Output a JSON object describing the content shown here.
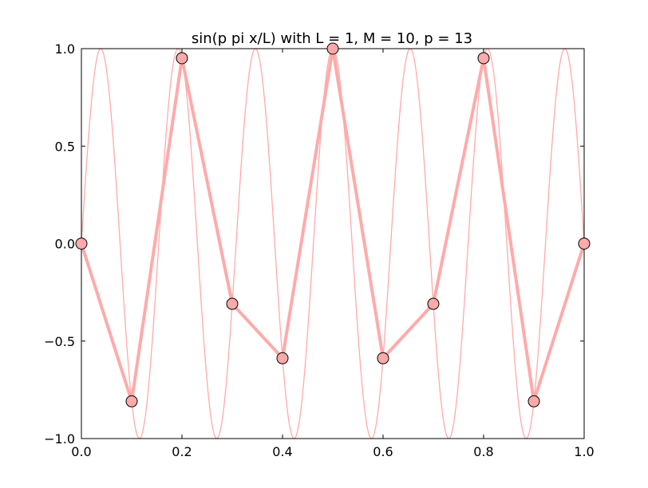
{
  "chart_data": {
    "type": "line",
    "title": "sin(p pi x/L) with L = 1, M = 10, p = 13",
    "xlabel": "",
    "ylabel": "",
    "xlim": [
      0.0,
      1.0
    ],
    "ylim": [
      -1.0,
      1.0
    ],
    "grid": false,
    "legend": "none",
    "color": "#ffaaaa",
    "marker_edge_color": "#000000",
    "x_ticks": [
      {
        "value": 0.0,
        "label": "0.0"
      },
      {
        "value": 0.2,
        "label": "0.2"
      },
      {
        "value": 0.4,
        "label": "0.4"
      },
      {
        "value": 0.6,
        "label": "0.6"
      },
      {
        "value": 0.8,
        "label": "0.8"
      },
      {
        "value": 1.0,
        "label": "1.0"
      }
    ],
    "y_ticks": [
      {
        "value": -1.0,
        "label": "−1.0"
      },
      {
        "value": -0.5,
        "label": "−0.5"
      },
      {
        "value": 0.0,
        "label": "0.0"
      },
      {
        "value": 0.5,
        "label": "0.5"
      },
      {
        "value": 1.0,
        "label": "1.0"
      }
    ],
    "series": [
      {
        "style": "thin-curve",
        "function": "sin(p*pi*x/L)",
        "p": 13,
        "L": 1
      },
      {
        "style": "thick-line-with-markers",
        "x": [
          0.0,
          0.1,
          0.2,
          0.3,
          0.4,
          0.5,
          0.6,
          0.7,
          0.8,
          0.9,
          1.0
        ],
        "y": [
          0.0,
          -0.809,
          0.951,
          -0.309,
          -0.588,
          1.0,
          -0.588,
          -0.309,
          0.951,
          -0.809,
          0.0
        ]
      }
    ]
  }
}
